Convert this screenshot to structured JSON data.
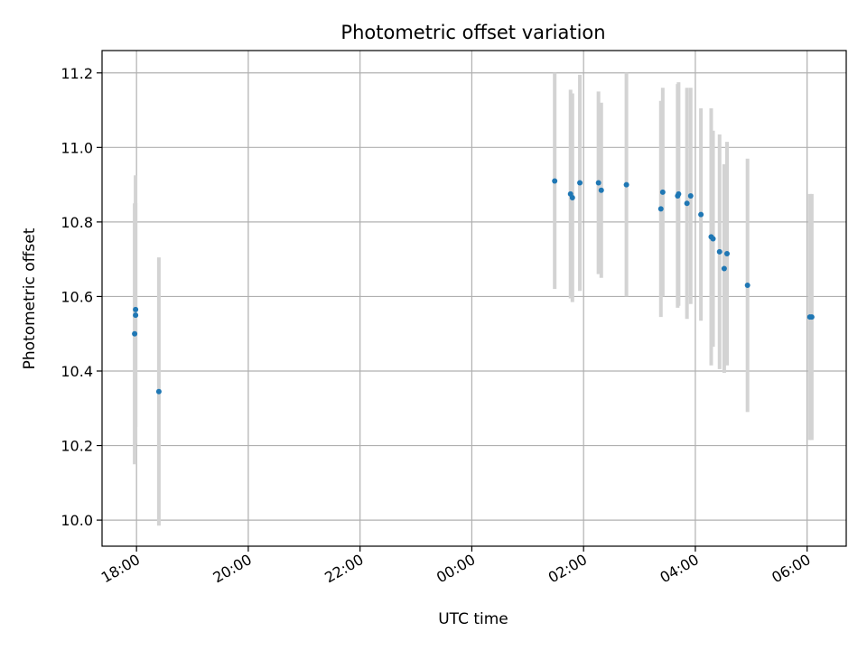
{
  "chart_data": {
    "type": "scatter",
    "title": "Photometric offset variation",
    "xlabel": "UTC time",
    "ylabel": "Photometric offset",
    "xlim": [
      "2023-01-01T17:23",
      "2023-01-02T06:42"
    ],
    "ylim": [
      9.93,
      11.26
    ],
    "x_ticks": [
      {
        "t": "2023-01-01T18:00",
        "label": "18:00"
      },
      {
        "t": "2023-01-01T20:00",
        "label": "20:00"
      },
      {
        "t": "2023-01-01T22:00",
        "label": "22:00"
      },
      {
        "t": "2023-01-02T00:00",
        "label": "00:00"
      },
      {
        "t": "2023-01-02T02:00",
        "label": "02:00"
      },
      {
        "t": "2023-01-02T04:00",
        "label": "04:00"
      },
      {
        "t": "2023-01-02T06:00",
        "label": "06:00"
      }
    ],
    "y_ticks": [
      10.0,
      10.2,
      10.4,
      10.6,
      10.8,
      11.0,
      11.2
    ],
    "grid": true,
    "colors": {
      "points": "#1f77b4",
      "error_bars": "#d3d3d3"
    },
    "points": [
      {
        "t": "2023-01-01T17:58",
        "y": 10.5,
        "err": 0.35
      },
      {
        "t": "2023-01-01T17:59",
        "y": 10.565,
        "err": 0.36
      },
      {
        "t": "2023-01-01T17:59",
        "y": 10.55,
        "err": 0.3
      },
      {
        "t": "2023-01-01T18:24",
        "y": 10.345,
        "err": 0.36
      },
      {
        "t": "2023-01-02T01:29",
        "y": 10.91,
        "err": 0.29
      },
      {
        "t": "2023-01-02T01:46",
        "y": 10.875,
        "err": 0.28
      },
      {
        "t": "2023-01-02T01:48",
        "y": 10.865,
        "err": 0.28
      },
      {
        "t": "2023-01-02T01:56",
        "y": 10.905,
        "err": 0.29
      },
      {
        "t": "2023-01-02T02:16",
        "y": 10.905,
        "err": 0.245
      },
      {
        "t": "2023-01-02T02:19",
        "y": 10.885,
        "err": 0.235
      },
      {
        "t": "2023-01-02T02:46",
        "y": 10.9,
        "err": 0.3
      },
      {
        "t": "2023-01-02T03:23",
        "y": 10.835,
        "err": 0.29
      },
      {
        "t": "2023-01-02T03:25",
        "y": 10.88,
        "err": 0.28
      },
      {
        "t": "2023-01-02T03:41",
        "y": 10.87,
        "err": 0.3
      },
      {
        "t": "2023-01-02T03:42",
        "y": 10.875,
        "err": 0.3
      },
      {
        "t": "2023-01-02T03:51",
        "y": 10.85,
        "err": 0.31
      },
      {
        "t": "2023-01-02T03:55",
        "y": 10.87,
        "err": 0.29
      },
      {
        "t": "2023-01-02T04:06",
        "y": 10.82,
        "err": 0.285
      },
      {
        "t": "2023-01-02T04:17",
        "y": 10.76,
        "err": 0.345
      },
      {
        "t": "2023-01-02T04:19",
        "y": 10.755,
        "err": 0.29
      },
      {
        "t": "2023-01-02T04:26",
        "y": 10.72,
        "err": 0.315
      },
      {
        "t": "2023-01-02T04:31",
        "y": 10.675,
        "err": 0.28
      },
      {
        "t": "2023-01-02T04:34",
        "y": 10.715,
        "err": 0.3
      },
      {
        "t": "2023-01-02T04:56",
        "y": 10.63,
        "err": 0.34
      },
      {
        "t": "2023-01-02T06:03",
        "y": 10.545,
        "err": 0.33
      },
      {
        "t": "2023-01-02T06:05",
        "y": 10.545,
        "err": 0.33
      }
    ]
  }
}
